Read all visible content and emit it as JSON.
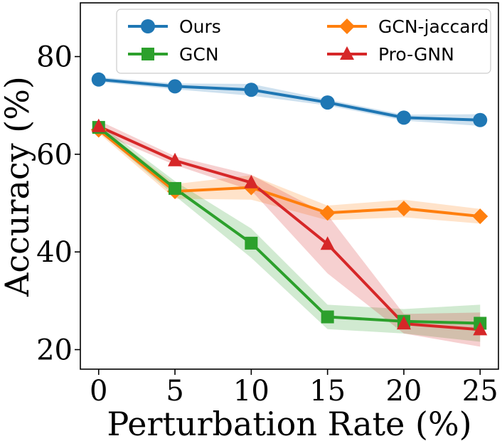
{
  "chart_data": {
    "type": "line",
    "xlabel": "Perturbation Rate (%)",
    "ylabel": "Accuracy (%)",
    "xlim": [
      -1.2,
      26.2
    ],
    "ylim": [
      16,
      91
    ],
    "xticks": [
      0,
      5,
      10,
      15,
      20,
      25
    ],
    "yticks": [
      20,
      40,
      60,
      80
    ],
    "x": [
      0,
      5,
      10,
      15,
      20,
      25
    ],
    "legend_position": "top",
    "grid": false,
    "series": [
      {
        "name": "Ours",
        "marker": "circle",
        "color": "#1f77b4",
        "values": [
          75.3,
          73.9,
          73.2,
          70.6,
          67.5,
          67.0
        ],
        "band": [
          0.5,
          0.6,
          1.2,
          0.6,
          0.6,
          1.2
        ]
      },
      {
        "name": "GCN-jaccard",
        "marker": "diamond",
        "color": "#ff7f0e",
        "values": [
          65.0,
          52.4,
          53.2,
          48.0,
          48.9,
          47.3
        ],
        "band": [
          0.7,
          1.5,
          2.5,
          1.5,
          1.8,
          1.5
        ]
      },
      {
        "name": "GCN",
        "marker": "square",
        "color": "#2ca02c",
        "values": [
          65.5,
          53.0,
          41.8,
          26.7,
          25.8,
          25.4
        ],
        "band": [
          0.8,
          1.5,
          3.0,
          2.5,
          2.5,
          3.8
        ]
      },
      {
        "name": "Pro-GNN",
        "marker": "triangle",
        "color": "#d62728",
        "values": [
          65.7,
          58.7,
          54.2,
          41.6,
          25.3,
          24.1
        ],
        "band": [
          1.2,
          0.9,
          1.6,
          6.0,
          2.0,
          3.5
        ]
      }
    ]
  }
}
